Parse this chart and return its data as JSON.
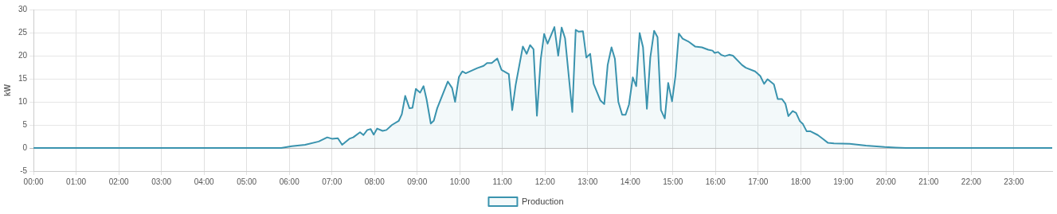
{
  "chart_data": {
    "type": "area",
    "ylabel": "kW",
    "xlim": [
      0,
      23.9
    ],
    "ylim": [
      -5,
      30
    ],
    "xticks": [
      {
        "value": 0,
        "label": "00:00"
      },
      {
        "value": 1,
        "label": "01:00"
      },
      {
        "value": 2,
        "label": "02:00"
      },
      {
        "value": 3,
        "label": "03:00"
      },
      {
        "value": 4,
        "label": "04:00"
      },
      {
        "value": 5,
        "label": "05:00"
      },
      {
        "value": 6,
        "label": "06:00"
      },
      {
        "value": 7,
        "label": "07:00"
      },
      {
        "value": 8,
        "label": "08:00"
      },
      {
        "value": 9,
        "label": "09:00"
      },
      {
        "value": 10,
        "label": "10:00"
      },
      {
        "value": 11,
        "label": "11:00"
      },
      {
        "value": 12,
        "label": "12:00"
      },
      {
        "value": 13,
        "label": "13:00"
      },
      {
        "value": 14,
        "label": "14:00"
      },
      {
        "value": 15,
        "label": "15:00"
      },
      {
        "value": 16,
        "label": "16:00"
      },
      {
        "value": 17,
        "label": "17:00"
      },
      {
        "value": 18,
        "label": "18:00"
      },
      {
        "value": 19,
        "label": "19:00"
      },
      {
        "value": 20,
        "label": "20:00"
      },
      {
        "value": 21,
        "label": "21:00"
      },
      {
        "value": 22,
        "label": "22:00"
      },
      {
        "value": 23,
        "label": "23:00"
      }
    ],
    "yticks": [
      -5,
      0,
      5,
      10,
      15,
      20,
      25,
      30
    ],
    "grid": true,
    "legend": "bottom",
    "marker": "none",
    "x": [
      0,
      5.81,
      6.06,
      6.37,
      6.69,
      6.89,
      7.0,
      7.14,
      7.24,
      7.41,
      7.5,
      7.66,
      7.74,
      7.83,
      7.91,
      7.98,
      8.06,
      8.19,
      8.28,
      8.41,
      8.57,
      8.64,
      8.72,
      8.82,
      8.89,
      8.97,
      9.07,
      9.15,
      9.22,
      9.32,
      9.39,
      9.47,
      9.72,
      9.82,
      9.89,
      9.98,
      10.06,
      10.14,
      10.41,
      10.56,
      10.64,
      10.75,
      10.88,
      10.98,
      11.15,
      11.23,
      11.31,
      11.48,
      11.57,
      11.65,
      11.73,
      11.81,
      11.9,
      11.98,
      12.06,
      12.22,
      12.31,
      12.39,
      12.47,
      12.64,
      12.72,
      12.79,
      12.89,
      12.97,
      13.06,
      13.14,
      13.3,
      13.39,
      13.47,
      13.56,
      13.64,
      13.72,
      13.81,
      13.89,
      13.97,
      14.06,
      14.14,
      14.22,
      14.3,
      14.39,
      14.47,
      14.56,
      14.64,
      14.72,
      14.81,
      14.89,
      14.98,
      15.06,
      15.14,
      15.23,
      15.36,
      15.52,
      15.68,
      15.83,
      15.93,
      15.98,
      16.06,
      16.13,
      16.22,
      16.32,
      16.41,
      16.62,
      16.71,
      16.93,
      17.05,
      17.14,
      17.22,
      17.37,
      17.46,
      17.56,
      17.64,
      17.71,
      17.81,
      17.89,
      17.98,
      18.05,
      18.14,
      18.23,
      18.4,
      18.53,
      18.64,
      18.78,
      19.15,
      19.53,
      19.97,
      20.22,
      20.47,
      23.9
    ],
    "series": [
      {
        "name": "Production",
        "color": "#3a93ae",
        "values": [
          0,
          0,
          0.4,
          0.7,
          1.4,
          2.3,
          2.0,
          2.1,
          0.7,
          2.0,
          2.3,
          3.4,
          2.8,
          3.9,
          4.1,
          2.9,
          4.2,
          3.7,
          3.9,
          5.0,
          5.9,
          7.3,
          11.3,
          8.6,
          8.7,
          12.8,
          12.0,
          13.4,
          10.6,
          5.3,
          5.9,
          8.6,
          14.4,
          13.0,
          10.0,
          15.4,
          16.6,
          16.2,
          17.3,
          17.8,
          18.4,
          18.4,
          19.4,
          16.9,
          16.0,
          8.2,
          13.6,
          22.0,
          20.4,
          22.3,
          21.4,
          7.0,
          19.3,
          24.7,
          22.6,
          26.2,
          20.0,
          26.1,
          23.8,
          7.8,
          25.6,
          25.2,
          25.3,
          19.6,
          20.4,
          13.9,
          10.3,
          9.5,
          18.0,
          21.8,
          19.3,
          10.0,
          7.2,
          7.2,
          9.4,
          15.3,
          13.4,
          24.9,
          21.8,
          8.5,
          19.6,
          25.4,
          24.0,
          8.2,
          6.4,
          14.1,
          10.1,
          15.6,
          24.8,
          23.7,
          23.1,
          22.0,
          21.8,
          21.3,
          21.1,
          20.6,
          20.8,
          20.2,
          19.9,
          20.2,
          20.0,
          18.0,
          17.4,
          16.6,
          15.6,
          13.9,
          14.9,
          13.8,
          10.6,
          10.6,
          9.6,
          6.9,
          8.0,
          7.6,
          5.8,
          5.2,
          3.6,
          3.6,
          2.8,
          1.9,
          1.1,
          1.0,
          0.9,
          0.5,
          0.2,
          0.1,
          0,
          0
        ]
      }
    ]
  }
}
